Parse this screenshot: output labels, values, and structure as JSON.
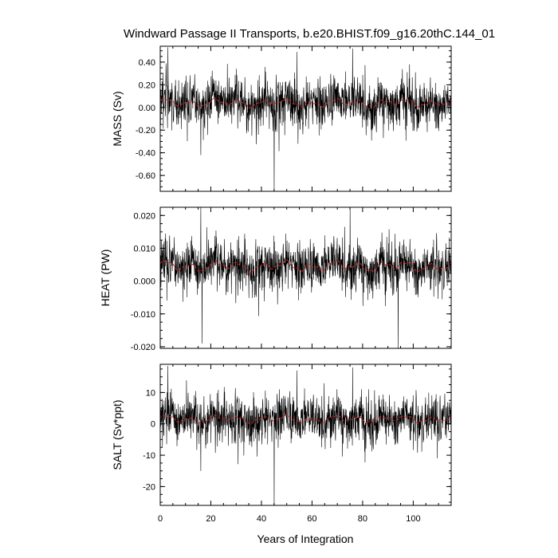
{
  "chart_data": {
    "type": "line",
    "title": "Windward Passage II Transports, b.e20.BHIST.f09_g16.20thC.144_01",
    "xlabel": "Years of Integration",
    "xlim": [
      0,
      115
    ],
    "xticks": [
      0,
      20,
      40,
      60,
      80,
      100
    ],
    "xtick_labels": [
      "0",
      "20",
      "40",
      "60",
      "80",
      "100"
    ],
    "colors": {
      "raw": "#000000",
      "smooth": "#d62020"
    },
    "panels": [
      {
        "ylabel": "MASS (Sv)",
        "ylim": [
          -0.74,
          0.54
        ],
        "yticks": [
          0.4,
          0.2,
          0.0,
          -0.2,
          -0.4,
          -0.6
        ],
        "ytick_labels": [
          "0.40",
          "0.20",
          "0.00",
          "-0.20",
          "-0.40",
          "-0.60"
        ],
        "base": 0.04,
        "amp": 0.12,
        "spikes": [
          [
            3.0,
            0.53
          ],
          [
            16.0,
            -0.42
          ],
          [
            45.0,
            -0.73
          ],
          [
            54.0,
            0.49
          ],
          [
            76.0,
            0.52
          ]
        ],
        "smooth_mean": 0.04,
        "smooth_amp": 0.04
      },
      {
        "ylabel": "HEAT (PW)",
        "ylim": [
          -0.0205,
          0.0225
        ],
        "yticks": [
          0.02,
          0.01,
          0.0,
          -0.01,
          -0.02
        ],
        "ytick_labels": [
          "0.020",
          "0.010",
          "0.000",
          "-0.010",
          "-0.020"
        ],
        "base": 0.0045,
        "amp": 0.0042,
        "spikes": [
          [
            16.0,
            0.0225
          ],
          [
            16.5,
            -0.019
          ],
          [
            75.0,
            0.022
          ],
          [
            94.0,
            -0.0205
          ]
        ],
        "smooth_mean": 0.0045,
        "smooth_amp": 0.0018
      },
      {
        "ylabel": "SALT (Sv*ppt)",
        "ylim": [
          -26,
          19
        ],
        "yticks": [
          10,
          0,
          -10,
          -20
        ],
        "ytick_labels": [
          "10",
          "0",
          "-10",
          "-20"
        ],
        "base": 1.5,
        "amp": 4.2,
        "spikes": [
          [
            3.0,
            18.5
          ],
          [
            16.0,
            -15.0
          ],
          [
            45.0,
            -26.0
          ],
          [
            54.0,
            17.0
          ],
          [
            76.0,
            18.0
          ]
        ],
        "smooth_mean": 1.5,
        "smooth_amp": 1.3
      }
    ]
  }
}
